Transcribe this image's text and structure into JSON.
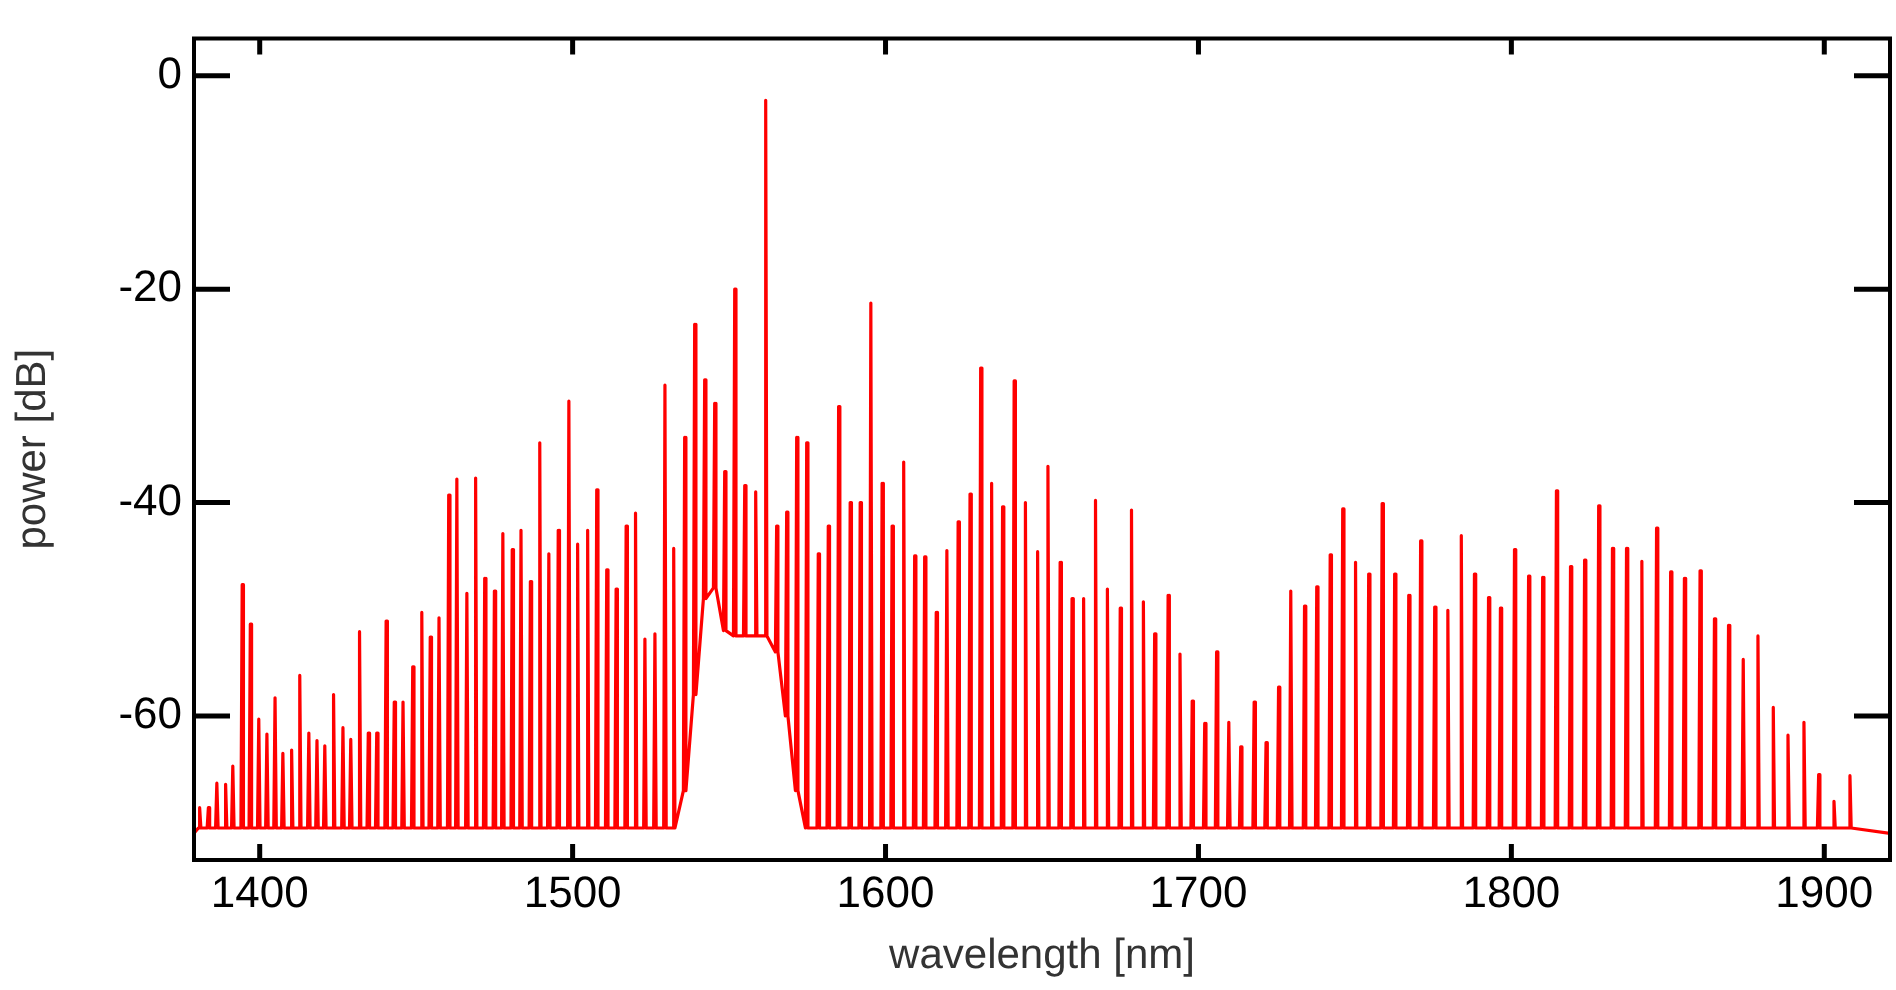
{
  "chart_data": {
    "type": "line",
    "xlabel": "wavelength [nm]",
    "ylabel": "power [dB]",
    "xlim": [
      1379,
      1921
    ],
    "ylim": [
      -73.5,
      3.5
    ],
    "xticks": [
      1400,
      1500,
      1600,
      1700,
      1800,
      1900
    ],
    "yticks": [
      0,
      -20,
      -40,
      -60
    ],
    "grid": false,
    "series": [
      {
        "color": "#ff0000",
        "x": [
          1379,
          1380.4,
          1380.8,
          1381.2,
          1383.2,
          1383.6,
          1384.0,
          1385.9,
          1386.3,
          1386.7,
          1388.7,
          1389.1,
          1389.5,
          1391.0,
          1391.4,
          1391.8,
          1394.0,
          1394.4,
          1394.8,
          1396.6,
          1397.0,
          1397.4,
          1399.3,
          1399.7,
          1400.1,
          1401.9,
          1402.3,
          1402.7,
          1404.5,
          1404.9,
          1405.3,
          1407.0,
          1407.4,
          1407.8,
          1409.8,
          1410.2,
          1410.6,
          1412.4,
          1412.8,
          1413.2,
          1415.3,
          1415.7,
          1416.1,
          1417.9,
          1418.3,
          1418.7,
          1420.4,
          1420.8,
          1421.2,
          1423.2,
          1423.6,
          1424.0,
          1426.2,
          1426.6,
          1427.0,
          1428.7,
          1429.1,
          1429.5,
          1431.5,
          1431.9,
          1432.3,
          1434.3,
          1434.7,
          1435.1,
          1437.0,
          1437.4,
          1437.8,
          1440.0,
          1440.4,
          1440.8,
          1442.6,
          1443.0,
          1443.4,
          1445.4,
          1445.8,
          1446.2,
          1448.5,
          1448.9,
          1449.3,
          1451.4,
          1451.8,
          1452.2,
          1454.1,
          1454.5,
          1454.9,
          1456.9,
          1457.3,
          1457.7,
          1460.0,
          1460.4,
          1460.8,
          1462.6,
          1463.0,
          1463.4,
          1465.8,
          1466.2,
          1466.6,
          1468.6,
          1469.0,
          1469.4,
          1471.5,
          1471.9,
          1472.3,
          1474.6,
          1475.0,
          1475.4,
          1477.3,
          1477.7,
          1478.1,
          1480.3,
          1480.7,
          1481.1,
          1483.1,
          1483.5,
          1483.9,
          1486.1,
          1486.5,
          1486.9,
          1489.1,
          1489.5,
          1489.9,
          1492.0,
          1492.4,
          1492.8,
          1495.0,
          1495.4,
          1495.8,
          1498.4,
          1498.8,
          1499.2,
          1501.2,
          1501.6,
          1502.0,
          1504.4,
          1504.8,
          1505.2,
          1507.3,
          1507.7,
          1508.1,
          1510.5,
          1510.9,
          1511.3,
          1513.5,
          1513.9,
          1514.3,
          1516.7,
          1517.1,
          1517.5,
          1519.7,
          1520.1,
          1520.5,
          1522.7,
          1523.1,
          1523.5,
          1525.9,
          1526.3,
          1526.7,
          1529.1,
          1529.5,
          1529.9,
          1531.9,
          1532.3,
          1532.7,
          1535.4,
          1535.8,
          1536.2,
          1538.6,
          1539.0,
          1539.4,
          1541.8,
          1542.2,
          1542.6,
          1545.0,
          1545.4,
          1545.8,
          1548.2,
          1548.6,
          1549.0,
          1551.4,
          1551.8,
          1552.2,
          1554.6,
          1555.0,
          1555.4,
          1558.1,
          1558.5,
          1558.9,
          1561.3,
          1561.7,
          1562.1,
          1564.8,
          1565.2,
          1565.6,
          1568.0,
          1568.4,
          1568.8,
          1571.2,
          1571.6,
          1572.0,
          1574.4,
          1574.8,
          1575.2,
          1578.1,
          1578.5,
          1578.9,
          1581.3,
          1581.7,
          1582.1,
          1584.6,
          1585.0,
          1585.4,
          1588.3,
          1588.7,
          1589.1,
          1591.5,
          1591.9,
          1592.3,
          1594.9,
          1595.3,
          1595.7,
          1598.5,
          1598.9,
          1599.3,
          1601.7,
          1602.1,
          1602.5,
          1605.4,
          1605.8,
          1606.2,
          1608.9,
          1609.3,
          1609.7,
          1612.1,
          1612.5,
          1612.9,
          1615.8,
          1616.2,
          1616.6,
          1619.2,
          1619.6,
          1620.0,
          1622.8,
          1623.2,
          1623.6,
          1626.6,
          1627.0,
          1627.4,
          1630.0,
          1630.4,
          1630.8,
          1633.5,
          1633.9,
          1634.3,
          1637.0,
          1637.4,
          1637.8,
          1640.7,
          1641.1,
          1641.5,
          1644.3,
          1644.7,
          1645.1,
          1648.2,
          1648.6,
          1649.0,
          1651.5,
          1651.9,
          1652.3,
          1655.4,
          1655.8,
          1656.2,
          1659.2,
          1659.6,
          1660.0,
          1662.9,
          1663.3,
          1663.7,
          1666.7,
          1667.1,
          1667.5,
          1670.5,
          1670.9,
          1671.3,
          1674.6,
          1675.0,
          1675.4,
          1678.2,
          1678.6,
          1679.0,
          1682.0,
          1682.4,
          1682.8,
          1685.6,
          1686.0,
          1686.4,
          1689.9,
          1690.3,
          1690.7,
          1693.7,
          1694.1,
          1694.5,
          1697.6,
          1698.0,
          1698.4,
          1701.6,
          1702.0,
          1702.4,
          1705.4,
          1705.8,
          1706.2,
          1709.3,
          1709.7,
          1710.1,
          1713.1,
          1713.5,
          1713.9,
          1717.4,
          1717.8,
          1718.2,
          1721.2,
          1721.6,
          1722.0,
          1725.2,
          1725.6,
          1726.0,
          1729.1,
          1729.5,
          1729.9,
          1733.5,
          1733.9,
          1734.3,
          1737.4,
          1737.8,
          1738.2,
          1741.7,
          1742.1,
          1742.5,
          1745.7,
          1746.1,
          1746.5,
          1749.8,
          1750.2,
          1750.6,
          1754.0,
          1754.4,
          1754.8,
          1758.3,
          1758.7,
          1759.1,
          1762.3,
          1762.7,
          1763.1,
          1766.8,
          1767.2,
          1767.6,
          1770.6,
          1771.0,
          1771.4,
          1775.1,
          1775.5,
          1775.9,
          1779.3,
          1779.7,
          1780.1,
          1783.6,
          1784.0,
          1784.4,
          1787.8,
          1788.2,
          1788.6,
          1792.3,
          1792.7,
          1793.1,
          1796.1,
          1796.5,
          1796.9,
          1800.6,
          1801.0,
          1801.4,
          1805.1,
          1805.5,
          1805.9,
          1809.6,
          1810.0,
          1810.4,
          1814.0,
          1814.4,
          1814.8,
          1818.5,
          1818.9,
          1819.3,
          1823.0,
          1823.4,
          1823.8,
          1827.5,
          1827.9,
          1828.3,
          1831.9,
          1832.3,
          1832.7,
          1836.4,
          1836.8,
          1837.2,
          1841.3,
          1841.7,
          1842.1,
          1846.0,
          1846.4,
          1846.8,
          1850.5,
          1850.9,
          1851.3,
          1854.9,
          1855.3,
          1855.7,
          1859.9,
          1860.3,
          1860.7,
          1864.5,
          1864.9,
          1865.3,
          1869.0,
          1869.4,
          1869.8,
          1873.7,
          1874.1,
          1874.5,
          1878.4,
          1878.8,
          1879.2,
          1883.3,
          1883.7,
          1884.1,
          1888.0,
          1888.4,
          1888.8,
          1893.1,
          1893.5,
          1893.9,
          1897.8,
          1898.2,
          1898.6,
          1902.7,
          1903.1,
          1903.5,
          1907.8,
          1908.2,
          1908.6,
          1921
        ],
        "values": [
          -71,
          -70.5,
          -68.6,
          -70.5,
          -70.5,
          -68.6,
          -70.5,
          -70.5,
          -66.3,
          -70.5,
          -70.5,
          -66.4,
          -70.5,
          -70.5,
          -64.7,
          -70.5,
          -70.5,
          -47.7,
          -70.5,
          -70.5,
          -51.4,
          -70.5,
          -70.5,
          -60.3,
          -70.5,
          -70.5,
          -61.7,
          -70.5,
          -70.5,
          -58.3,
          -70.5,
          -70.5,
          -63.5,
          -70.5,
          -70.5,
          -63.2,
          -70.5,
          -70.5,
          -56.2,
          -70.5,
          -70.5,
          -61.6,
          -70.5,
          -70.5,
          -62.3,
          -70.5,
          -70.5,
          -62.8,
          -70.5,
          -70.5,
          -58.0,
          -70.5,
          -70.5,
          -61.1,
          -70.5,
          -70.5,
          -62.2,
          -70.5,
          -70.5,
          -52.1,
          -70.5,
          -70.5,
          -61.6,
          -70.5,
          -70.5,
          -61.6,
          -70.5,
          -70.5,
          -51.1,
          -70.5,
          -70.5,
          -58.7,
          -70.5,
          -70.5,
          -58.7,
          -70.5,
          -70.5,
          -55.4,
          -70.5,
          -70.5,
          -50.3,
          -70.5,
          -70.5,
          -52.6,
          -70.5,
          -70.5,
          -50.8,
          -70.5,
          -70.5,
          -39.3,
          -70.5,
          -70.5,
          -37.8,
          -70.5,
          -70.5,
          -48.5,
          -70.5,
          -70.5,
          -37.7,
          -70.5,
          -70.5,
          -47.1,
          -70.5,
          -70.5,
          -48.3,
          -70.5,
          -70.5,
          -42.9,
          -70.5,
          -70.5,
          -44.4,
          -70.5,
          -70.5,
          -42.6,
          -70.5,
          -70.5,
          -47.4,
          -70.5,
          -70.5,
          -34.4,
          -70.5,
          -70.5,
          -44.8,
          -70.5,
          -70.5,
          -42.6,
          -70.5,
          -70.5,
          -30.5,
          -70.5,
          -70.5,
          -43.9,
          -70.5,
          -70.5,
          -42.6,
          -70.5,
          -70.5,
          -38.8,
          -70.5,
          -70.5,
          -46.3,
          -70.5,
          -70.5,
          -48.1,
          -70.5,
          -70.5,
          -42.2,
          -70.5,
          -70.5,
          -41.0,
          -70.5,
          -70.5,
          -52.8,
          -70.5,
          -70.5,
          -52.3,
          -70.5,
          -70.5,
          -29.0,
          -70.5,
          -70.5,
          -44.3,
          -70.5,
          -67,
          -33.9,
          -67,
          -58,
          -23.3,
          -58,
          -49,
          -28.5,
          -49,
          -48,
          -30.7,
          -48,
          -52,
          -37.1,
          -52,
          -52.5,
          -20.0,
          -52.5,
          -52.5,
          -38.4,
          -52.5,
          -52.5,
          -39.0,
          -52.5,
          -52.5,
          -2.3,
          -52.5,
          -54,
          -42.2,
          -54,
          -60,
          -40.9,
          -60,
          -67,
          -33.9,
          -67,
          -70.5,
          -34.4,
          -70.5,
          -70.5,
          -44.8,
          -70.5,
          -70.5,
          -42.2,
          -70.5,
          -70.5,
          -31.0,
          -70.5,
          -70.5,
          -40.0,
          -70.5,
          -70.5,
          -40.0,
          -70.5,
          -70.5,
          -21.3,
          -70.5,
          -70.5,
          -38.2,
          -70.5,
          -70.5,
          -42.2,
          -70.5,
          -70.5,
          -36.2,
          -70.5,
          -70.5,
          -45.0,
          -70.5,
          -70.5,
          -45.1,
          -70.5,
          -70.5,
          -50.3,
          -70.5,
          -70.5,
          -44.5,
          -70.5,
          -70.5,
          -41.8,
          -70.5,
          -70.5,
          -39.2,
          -70.5,
          -70.5,
          -27.4,
          -70.5,
          -70.5,
          -38.2,
          -70.5,
          -70.5,
          -40.4,
          -70.5,
          -70.5,
          -28.6,
          -70.5,
          -70.5,
          -40.0,
          -70.5,
          -70.5,
          -44.6,
          -70.5,
          -70.5,
          -36.6,
          -70.5,
          -70.5,
          -45.6,
          -70.5,
          -70.5,
          -49.0,
          -70.5,
          -70.5,
          -49.0,
          -70.5,
          -70.5,
          -39.8,
          -70.5,
          -70.5,
          -48.1,
          -70.5,
          -70.5,
          -49.9,
          -70.5,
          -70.5,
          -40.7,
          -70.5,
          -70.5,
          -49.3,
          -70.5,
          -70.5,
          -52.3,
          -70.5,
          -70.5,
          -48.7,
          -70.5,
          -70.5,
          -54.2,
          -70.5,
          -70.5,
          -58.6,
          -70.5,
          -70.5,
          -60.7,
          -70.5,
          -70.5,
          -54.0,
          -70.5,
          -70.5,
          -60.6,
          -70.5,
          -70.5,
          -62.9,
          -70.5,
          -70.5,
          -58.7,
          -70.5,
          -70.5,
          -62.5,
          -70.5,
          -70.5,
          -57.3,
          -70.5,
          -70.5,
          -48.3,
          -70.5,
          -70.5,
          -49.7,
          -70.5,
          -70.5,
          -47.9,
          -70.5,
          -70.5,
          -44.9,
          -70.5,
          -70.5,
          -40.6,
          -70.5,
          -70.5,
          -45.6,
          -70.5,
          -70.5,
          -46.7,
          -70.5,
          -70.5,
          -40.1,
          -70.5,
          -70.5,
          -46.7,
          -70.5,
          -70.5,
          -48.7,
          -70.5,
          -70.5,
          -43.6,
          -70.5,
          -70.5,
          -49.8,
          -70.5,
          -70.5,
          -50.1,
          -70.5,
          -70.5,
          -43.1,
          -70.5,
          -70.5,
          -46.7,
          -70.5,
          -70.5,
          -48.9,
          -70.5,
          -70.5,
          -49.9,
          -70.5,
          -70.5,
          -44.4,
          -70.5,
          -70.5,
          -46.9,
          -70.5,
          -70.5,
          -47.0,
          -70.5,
          -70.5,
          -38.9,
          -70.5,
          -70.5,
          -46.0,
          -70.5,
          -70.5,
          -45.4,
          -70.5,
          -70.5,
          -40.3,
          -70.5,
          -70.5,
          -44.3,
          -70.5,
          -70.5,
          -44.3,
          -70.5,
          -70.5,
          -45.5,
          -70.5,
          -70.5,
          -42.4,
          -70.5,
          -70.5,
          -46.5,
          -70.5,
          -70.5,
          -47.1,
          -70.5,
          -70.5,
          -46.4,
          -70.5,
          -70.5,
          -50.9,
          -70.5,
          -70.5,
          -51.5,
          -70.5,
          -70.5,
          -54.7,
          -70.5,
          -70.5,
          -52.5,
          -70.5,
          -70.5,
          -59.2,
          -70.5,
          -70.5,
          -61.8,
          -70.5,
          -70.5,
          -60.6,
          -70.5,
          -70.5,
          -65.5,
          -70.5,
          -70.5,
          -68.0,
          -70.5,
          -70.5,
          -65.6,
          -70.5,
          -71
        ]
      }
    ]
  }
}
